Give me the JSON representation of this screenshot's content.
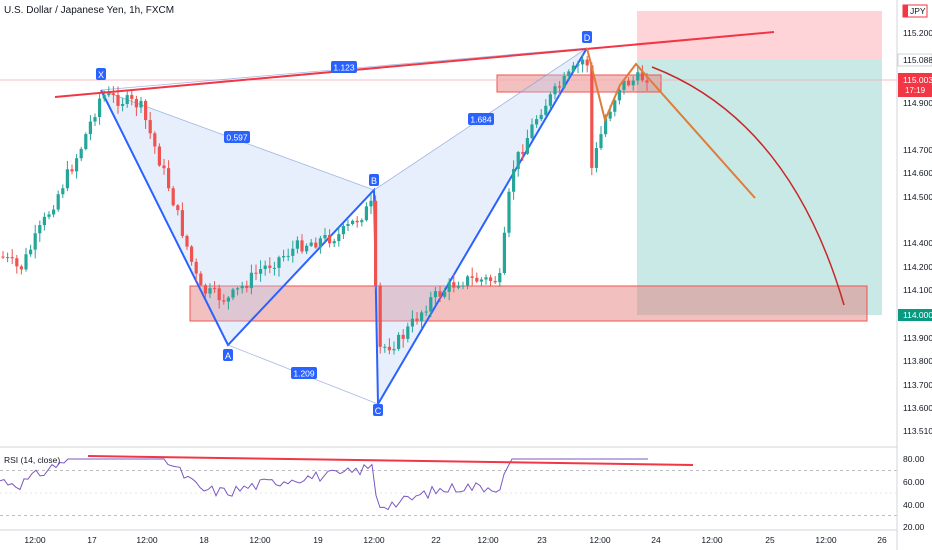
{
  "header": {
    "title": "U.S. Dollar / Japanese Yen, 1h, FXCM",
    "currency_badge": "JPY"
  },
  "colors": {
    "bull": "#26a69a",
    "bear": "#ef5350",
    "pattern_blue": "#2962ff",
    "pattern_fill": "#bbd0f7",
    "trend_red": "#f23645",
    "projection_orange": "#e07b39",
    "projection_red": "#c62828",
    "zone_red": "#e57373",
    "target_green": "#b2dfdb",
    "stop_red": "#ffcdd2",
    "rsi_line": "#7e57c2"
  },
  "chart_data": {
    "type": "candlestick",
    "symbol": "USDJPY",
    "timeframe": "1h",
    "ylim": [
      113.5,
      115.3
    ],
    "price_ticks": [
      "115.200",
      "115.088",
      "115.003",
      "114.900",
      "114.700",
      "114.600",
      "114.500",
      "114.400",
      "114.200",
      "114.100",
      "114.000",
      "113.900",
      "113.800",
      "113.700",
      "113.600",
      "113.510"
    ],
    "last_price": "115.003",
    "countdown": "17:19",
    "current_marker": "115.088",
    "target_price": "114.000",
    "time_labels": [
      "12:00",
      "17",
      "12:00",
      "18",
      "12:00",
      "19",
      "12:00",
      "22",
      "12:00",
      "23",
      "12:00",
      "24",
      "12:00",
      "25",
      "12:00",
      "26"
    ],
    "harmonic_points": [
      {
        "label": "X",
        "price": 114.93
      },
      {
        "label": "A",
        "price": 113.87
      },
      {
        "label": "B",
        "price": 114.52
      },
      {
        "label": "C",
        "price": 113.63
      },
      {
        "label": "D",
        "price": 115.14
      }
    ],
    "harmonic_ratios": [
      "1.123",
      "0.597",
      "1.684",
      "1.209"
    ],
    "rsi": {
      "label": "RSI (14, close)",
      "ticks": [
        "80.00",
        "60.00",
        "40.00",
        "20.00"
      ],
      "levels": [
        70,
        30
      ]
    }
  }
}
